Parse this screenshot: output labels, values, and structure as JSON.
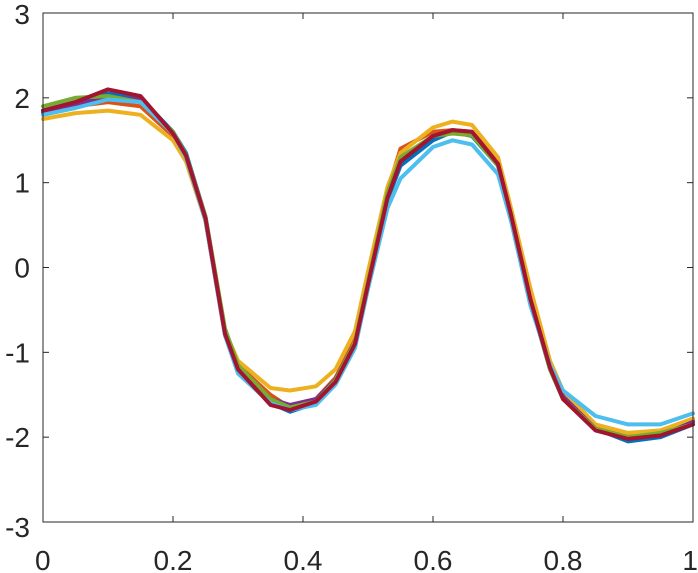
{
  "chart_data": {
    "type": "line",
    "title": "",
    "xlabel": "",
    "ylabel": "",
    "xlim": [
      0,
      1
    ],
    "ylim": [
      -3,
      3
    ],
    "grid": false,
    "box": true,
    "xticks": [
      0,
      0.2,
      0.4,
      0.6,
      0.8,
      1
    ],
    "xtick_labels": [
      "0",
      "0.2",
      "0.4",
      "0.6",
      "0.8",
      "1"
    ],
    "yticks": [
      -3,
      -2,
      -1,
      0,
      1,
      2,
      3
    ],
    "ytick_labels": [
      "-3",
      "-2",
      "-1",
      "0",
      "1",
      "2",
      "3"
    ],
    "x": [
      0,
      0.05,
      0.1,
      0.15,
      0.2,
      0.22,
      0.25,
      0.28,
      0.3,
      0.35,
      0.38,
      0.42,
      0.45,
      0.48,
      0.5,
      0.53,
      0.55,
      0.6,
      0.63,
      0.66,
      0.7,
      0.72,
      0.75,
      0.78,
      0.8,
      0.85,
      0.9,
      0.95,
      1.0
    ],
    "series": [
      {
        "color": "#0072BD",
        "values": [
          1.85,
          1.95,
          2.05,
          2.0,
          1.6,
          1.35,
          0.6,
          -0.75,
          -1.2,
          -1.6,
          -1.7,
          -1.6,
          -1.35,
          -0.9,
          -0.2,
          0.8,
          1.2,
          1.5,
          1.6,
          1.55,
          1.2,
          0.6,
          -0.4,
          -1.2,
          -1.55,
          -1.9,
          -2.05,
          -2.0,
          -1.85
        ]
      },
      {
        "color": "#D95319",
        "values": [
          1.8,
          1.9,
          1.95,
          1.9,
          1.55,
          1.3,
          0.55,
          -0.8,
          -1.15,
          -1.5,
          -1.65,
          -1.55,
          -1.3,
          -0.85,
          -0.15,
          0.9,
          1.4,
          1.6,
          1.62,
          1.6,
          1.25,
          0.65,
          -0.35,
          -1.15,
          -1.5,
          -1.88,
          -1.98,
          -1.95,
          -1.8
        ]
      },
      {
        "color": "#EDB120",
        "values": [
          1.75,
          1.82,
          1.85,
          1.8,
          1.5,
          1.25,
          0.55,
          -0.75,
          -1.1,
          -1.42,
          -1.45,
          -1.4,
          -1.2,
          -0.75,
          -0.05,
          0.95,
          1.35,
          1.65,
          1.72,
          1.68,
          1.3,
          0.7,
          -0.25,
          -1.1,
          -1.45,
          -1.85,
          -1.95,
          -1.92,
          -1.78
        ]
      },
      {
        "color": "#7E2F8E",
        "values": [
          1.82,
          1.92,
          2.0,
          1.98,
          1.58,
          1.32,
          0.58,
          -0.77,
          -1.18,
          -1.55,
          -1.62,
          -1.55,
          -1.32,
          -0.88,
          -0.18,
          0.85,
          1.28,
          1.55,
          1.6,
          1.57,
          1.22,
          0.62,
          -0.38,
          -1.18,
          -1.52,
          -1.9,
          -2.02,
          -1.98,
          -1.82
        ]
      },
      {
        "color": "#77AC30",
        "values": [
          1.9,
          2.0,
          2.02,
          1.95,
          1.6,
          1.33,
          0.6,
          -0.72,
          -1.15,
          -1.55,
          -1.65,
          -1.58,
          -1.33,
          -0.88,
          -0.18,
          0.88,
          1.3,
          1.55,
          1.58,
          1.56,
          1.2,
          0.6,
          -0.4,
          -1.2,
          -1.55,
          -1.9,
          -2.0,
          -1.95,
          -1.85
        ]
      },
      {
        "color": "#4DBEEE",
        "values": [
          1.8,
          1.88,
          1.98,
          1.95,
          1.58,
          1.3,
          0.55,
          -0.8,
          -1.25,
          -1.6,
          -1.68,
          -1.62,
          -1.38,
          -0.95,
          -0.25,
          0.7,
          1.05,
          1.42,
          1.5,
          1.45,
          1.1,
          0.55,
          -0.45,
          -1.15,
          -1.45,
          -1.75,
          -1.85,
          -1.85,
          -1.72
        ]
      },
      {
        "color": "#A2142F",
        "values": [
          1.85,
          1.95,
          2.1,
          2.02,
          1.58,
          1.32,
          0.58,
          -0.78,
          -1.2,
          -1.62,
          -1.68,
          -1.58,
          -1.35,
          -0.9,
          -0.2,
          0.82,
          1.25,
          1.55,
          1.62,
          1.6,
          1.22,
          0.62,
          -0.38,
          -1.18,
          -1.55,
          -1.92,
          -2.02,
          -1.98,
          -1.85
        ]
      }
    ]
  }
}
